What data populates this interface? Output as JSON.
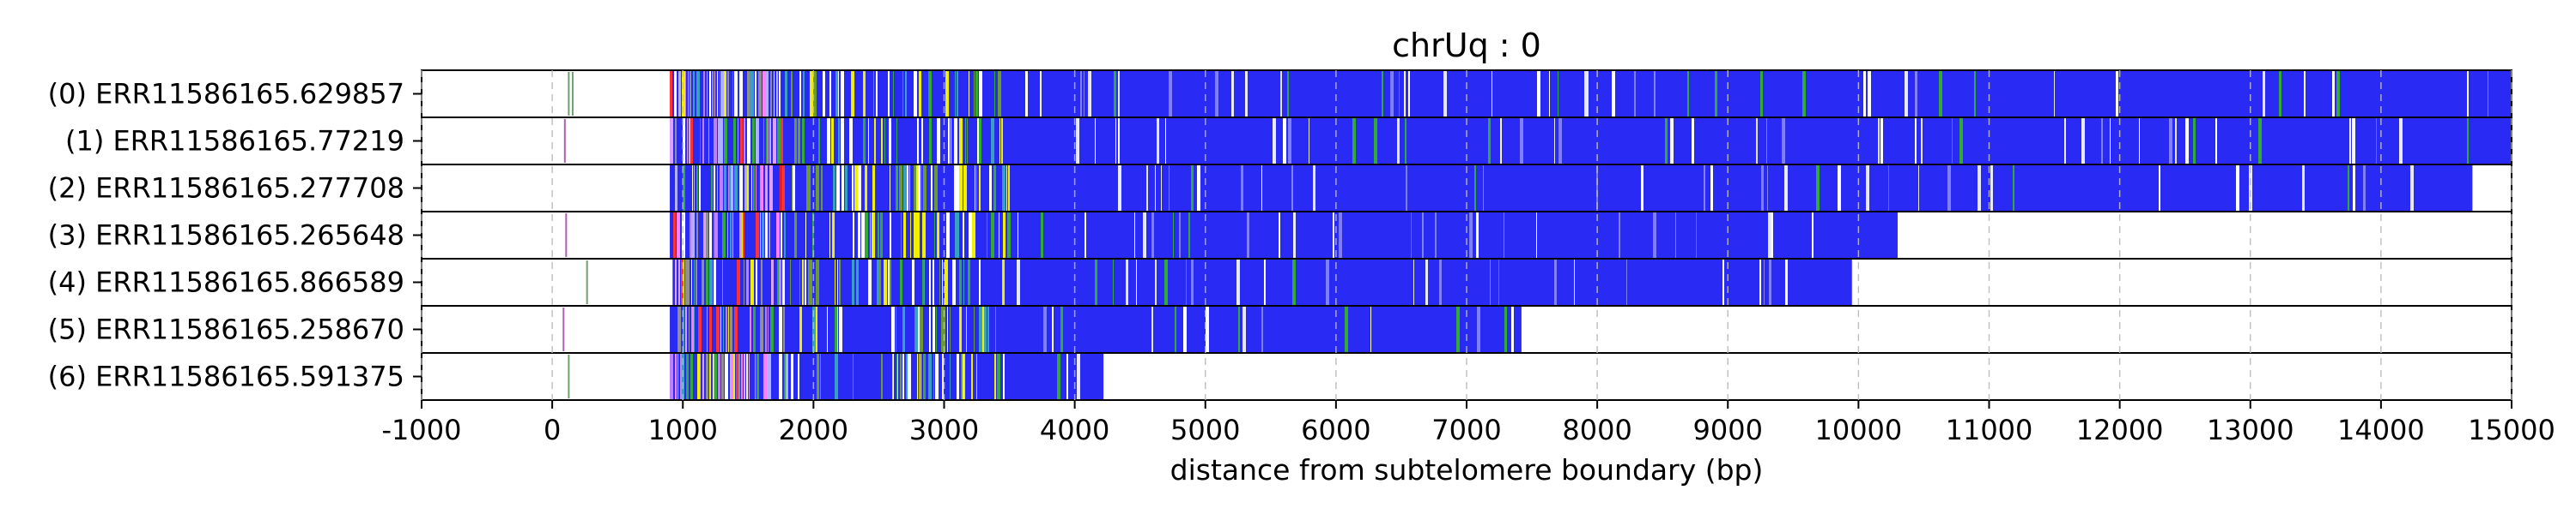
{
  "chart_data": {
    "type": "heatmap",
    "title": "chrUq : 0",
    "xlabel": "distance from subtelomere boundary (bp)",
    "ylabel": "",
    "xlim": [
      -1000,
      15000
    ],
    "x_ticks": [
      -1000,
      0,
      1000,
      2000,
      3000,
      4000,
      5000,
      6000,
      7000,
      8000,
      9000,
      10000,
      11000,
      12000,
      13000,
      14000,
      15000
    ],
    "x_tick_labels": [
      "-1000",
      "0",
      "1000",
      "2000",
      "3000",
      "4000",
      "5000",
      "6000",
      "7000",
      "8000",
      "9000",
      "10000",
      "11000",
      "12000",
      "13000",
      "14000",
      "15000"
    ],
    "grid": "vertical dashed",
    "dominant_color": "#2a2af5",
    "reads": [
      {
        "label": "(0) ERR11586165.629857",
        "pre_marks": [
          120,
          150
        ],
        "start": 900,
        "end": 15000
      },
      {
        "label": "(1) ERR11586165.77219",
        "pre_marks": [
          90
        ],
        "start": 900,
        "end": 15000
      },
      {
        "label": "(2) ERR11586165.277708",
        "pre_marks": [],
        "start": 900,
        "end": 14700
      },
      {
        "label": "(3) ERR11586165.265648",
        "pre_marks": [
          100
        ],
        "start": 900,
        "end": 10300
      },
      {
        "label": "(4) ERR11586165.866589",
        "pre_marks": [
          260
        ],
        "start": 900,
        "end": 9950
      },
      {
        "label": "(5) ERR11586165.258670",
        "pre_marks": [
          80
        ],
        "start": 900,
        "end": 7420
      },
      {
        "label": "(6) ERR11586165.591375",
        "pre_marks": [
          120
        ],
        "start": 900,
        "end": 4220
      }
    ]
  }
}
